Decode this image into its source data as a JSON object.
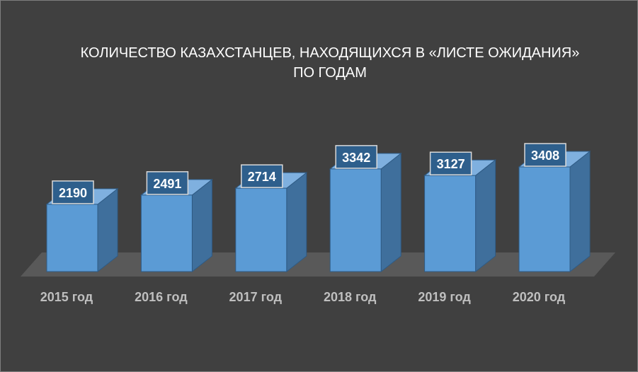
{
  "chart_data": {
    "type": "bar",
    "title": [
      "КОЛИЧЕСТВО КАЗАХСТАНЦЕВ, НАХОДЯЩИХСЯ В «ЛИСТЕ ОЖИДАНИЯ»",
      "ПО ГОДАМ"
    ],
    "categories": [
      "2015 год",
      "2016 год",
      "2017 год",
      "2018 год",
      "2019 год",
      "2020 год"
    ],
    "values": [
      2190,
      2491,
      2714,
      3342,
      3127,
      3408
    ],
    "ylim": [
      0,
      3408
    ],
    "grid": false,
    "legend": "none",
    "style": "3d-column",
    "colors": {
      "background": "#404040",
      "bar_front": "#5b9bd5",
      "bar_side": "#3f6f9c",
      "bar_top": "#7fb0df",
      "floor": "#595959",
      "label_box": "#2e5f8c",
      "label_border": "#d9d9d9",
      "tick_text": "#bfbfbf",
      "title_text": "#ffffff"
    }
  }
}
